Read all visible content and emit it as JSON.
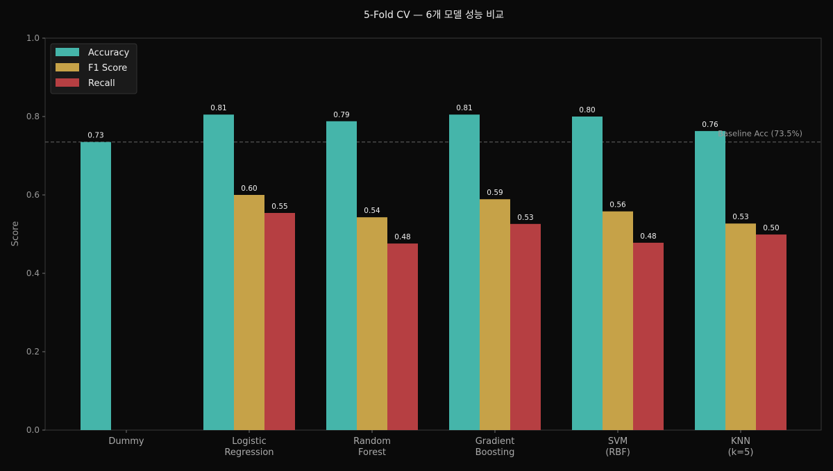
{
  "chart_data": {
    "type": "bar",
    "title": "5-Fold CV — 6개 모델 성능 비교",
    "xlabel": "",
    "ylabel": "Score",
    "ylim": [
      0,
      1.0
    ],
    "yticks": [
      "0.0",
      "0.2",
      "0.4",
      "0.6",
      "0.8",
      "1.0"
    ],
    "grid": false,
    "legend_position": "top-left",
    "categories": [
      [
        "Dummy"
      ],
      [
        "Logistic",
        "Regression"
      ],
      [
        "Random",
        "Forest"
      ],
      [
        "Gradient",
        "Boosting"
      ],
      [
        "SVM",
        "(RBF)"
      ],
      [
        "KNN",
        "(k=5)"
      ]
    ],
    "series": [
      {
        "name": "Accuracy",
        "color": "#45b5aa",
        "values": [
          0.735,
          0.805,
          0.788,
          0.805,
          0.8,
          0.763
        ],
        "labels": [
          "0.73",
          "0.81",
          "0.79",
          "0.81",
          "0.80",
          "0.76"
        ]
      },
      {
        "name": "F1 Score",
        "color": "#c6a248",
        "values": [
          null,
          0.6,
          0.543,
          0.589,
          0.558,
          0.527
        ],
        "labels": [
          null,
          "0.60",
          "0.54",
          "0.59",
          "0.56",
          "0.53"
        ]
      },
      {
        "name": "Recall",
        "color": "#b63f42",
        "values": [
          null,
          0.554,
          0.476,
          0.526,
          0.478,
          0.499
        ],
        "labels": [
          null,
          "0.55",
          "0.48",
          "0.53",
          "0.48",
          "0.50"
        ]
      }
    ],
    "reference_line": {
      "value": 0.735,
      "label": "Baseline Acc (73.5%)",
      "style": "dashed"
    }
  }
}
